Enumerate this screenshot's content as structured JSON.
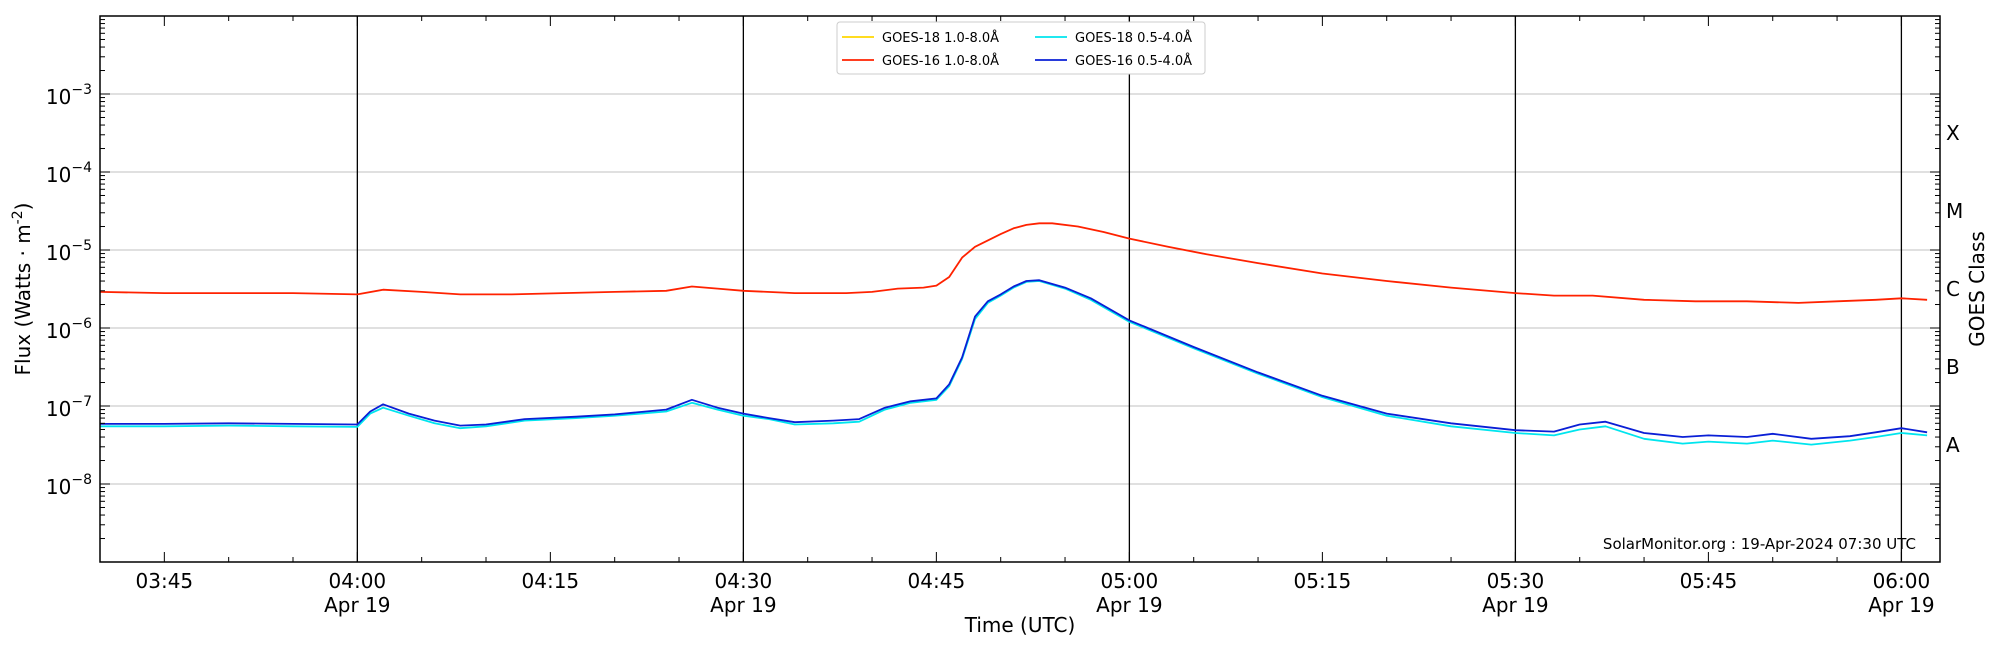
{
  "chart_data": {
    "type": "line",
    "xlabel": "Time (UTC)",
    "ylabel": "Flux (Watts · m",
    "ylabel_sup": "-2",
    "ylabel_close": ")",
    "right_label": "GOES Class",
    "credit": "SolarMonitor.org : 19-Apr-2024 07:30 UTC",
    "y_scale": "log",
    "ylim": [
      1e-09,
      0.01
    ],
    "xlim": [
      "03:40",
      "06:03"
    ],
    "grid": "horizontal",
    "legend_position": "top-center",
    "x_ticks": [
      {
        "t": "03:45",
        "line1": "03:45",
        "line2": ""
      },
      {
        "t": "04:00",
        "line1": "04:00",
        "line2": "Apr 19"
      },
      {
        "t": "04:15",
        "line1": "04:15",
        "line2": ""
      },
      {
        "t": "04:30",
        "line1": "04:30",
        "line2": "Apr 19"
      },
      {
        "t": "04:45",
        "line1": "04:45",
        "line2": ""
      },
      {
        "t": "05:00",
        "line1": "05:00",
        "line2": "Apr 19"
      },
      {
        "t": "05:15",
        "line1": "05:15",
        "line2": ""
      },
      {
        "t": "05:30",
        "line1": "05:30",
        "line2": "Apr 19"
      },
      {
        "t": "05:45",
        "line1": "05:45",
        "line2": ""
      },
      {
        "t": "06:00",
        "line1": "06:00",
        "line2": "Apr 19"
      }
    ],
    "vertical_lines": [
      "04:00",
      "04:30",
      "05:00",
      "05:30",
      "06:00"
    ],
    "y_ticks": [
      {
        "value": 1e-08,
        "base": "10",
        "exp": "−8"
      },
      {
        "value": 1e-07,
        "base": "10",
        "exp": "−7"
      },
      {
        "value": 1e-06,
        "base": "10",
        "exp": "−6"
      },
      {
        "value": 1e-05,
        "base": "10",
        "exp": "−5"
      },
      {
        "value": 0.0001,
        "base": "10",
        "exp": "−4"
      },
      {
        "value": 0.001,
        "base": "10",
        "exp": "−3"
      }
    ],
    "goes_classes": [
      {
        "label": "A",
        "value": 1e-08
      },
      {
        "label": "B",
        "value": 1e-07
      },
      {
        "label": "C",
        "value": 1e-06
      },
      {
        "label": "M",
        "value": 1e-05
      },
      {
        "label": "X",
        "value": 0.0001
      }
    ],
    "series": [
      {
        "name": "GOES-18 1.0-8.0Å",
        "color": "#ffd700",
        "points": []
      },
      {
        "name": "GOES-16 1.0-8.0Å",
        "color": "#ff2200",
        "points": [
          [
            "03:40",
            2.9e-06
          ],
          [
            "03:45",
            2.8e-06
          ],
          [
            "03:50",
            2.8e-06
          ],
          [
            "03:55",
            2.8e-06
          ],
          [
            "04:00",
            2.7e-06
          ],
          [
            "04:02",
            3.1e-06
          ],
          [
            "04:05",
            2.9e-06
          ],
          [
            "04:08",
            2.7e-06
          ],
          [
            "04:12",
            2.7e-06
          ],
          [
            "04:16",
            2.8e-06
          ],
          [
            "04:20",
            2.9e-06
          ],
          [
            "04:24",
            3e-06
          ],
          [
            "04:26",
            3.4e-06
          ],
          [
            "04:28",
            3.2e-06
          ],
          [
            "04:30",
            3e-06
          ],
          [
            "04:34",
            2.8e-06
          ],
          [
            "04:38",
            2.8e-06
          ],
          [
            "04:40",
            2.9e-06
          ],
          [
            "04:42",
            3.2e-06
          ],
          [
            "04:44",
            3.3e-06
          ],
          [
            "04:45",
            3.5e-06
          ],
          [
            "04:46",
            4.5e-06
          ],
          [
            "04:47",
            8e-06
          ],
          [
            "04:48",
            1.1e-05
          ],
          [
            "04:50",
            1.6e-05
          ],
          [
            "04:51",
            1.9e-05
          ],
          [
            "04:52",
            2.1e-05
          ],
          [
            "04:53",
            2.2e-05
          ],
          [
            "04:54",
            2.2e-05
          ],
          [
            "04:56",
            2e-05
          ],
          [
            "04:58",
            1.7e-05
          ],
          [
            "05:00",
            1.4e-05
          ],
          [
            "05:03",
            1.1e-05
          ],
          [
            "05:06",
            8.8e-06
          ],
          [
            "05:10",
            6.8e-06
          ],
          [
            "05:15",
            5e-06
          ],
          [
            "05:20",
            4e-06
          ],
          [
            "05:25",
            3.3e-06
          ],
          [
            "05:30",
            2.8e-06
          ],
          [
            "05:33",
            2.6e-06
          ],
          [
            "05:36",
            2.6e-06
          ],
          [
            "05:40",
            2.3e-06
          ],
          [
            "05:44",
            2.2e-06
          ],
          [
            "05:48",
            2.2e-06
          ],
          [
            "05:52",
            2.1e-06
          ],
          [
            "05:55",
            2.2e-06
          ],
          [
            "05:58",
            2.3e-06
          ],
          [
            "06:00",
            2.4e-06
          ],
          [
            "06:02",
            2.3e-06
          ]
        ]
      },
      {
        "name": "GOES-18 0.5-4.0Å",
        "color": "#00e5ee",
        "points": [
          [
            "03:40",
            5.5e-08
          ],
          [
            "03:45",
            5.5e-08
          ],
          [
            "03:50",
            5.6e-08
          ],
          [
            "03:55",
            5.5e-08
          ],
          [
            "04:00",
            5.4e-08
          ],
          [
            "04:01",
            8e-08
          ],
          [
            "04:02",
            9.5e-08
          ],
          [
            "04:04",
            7.5e-08
          ],
          [
            "04:06",
            6e-08
          ],
          [
            "04:08",
            5.2e-08
          ],
          [
            "04:10",
            5.5e-08
          ],
          [
            "04:13",
            6.5e-08
          ],
          [
            "04:17",
            7e-08
          ],
          [
            "04:20",
            7.5e-08
          ],
          [
            "04:24",
            8.5e-08
          ],
          [
            "04:26",
            1.1e-07
          ],
          [
            "04:28",
            9e-08
          ],
          [
            "04:30",
            7.5e-08
          ],
          [
            "04:32",
            6.8e-08
          ],
          [
            "04:34",
            5.8e-08
          ],
          [
            "04:37",
            6e-08
          ],
          [
            "04:39",
            6.3e-08
          ],
          [
            "04:41",
            9e-08
          ],
          [
            "04:43",
            1.1e-07
          ],
          [
            "04:45",
            1.2e-07
          ],
          [
            "04:46",
            1.8e-07
          ],
          [
            "04:47",
            4e-07
          ],
          [
            "04:48",
            1.3e-06
          ],
          [
            "04:49",
            2.1e-06
          ],
          [
            "04:50",
            2.6e-06
          ],
          [
            "04:51",
            3.3e-06
          ],
          [
            "04:52",
            3.9e-06
          ],
          [
            "04:53",
            4e-06
          ],
          [
            "04:55",
            3.2e-06
          ],
          [
            "04:57",
            2.3e-06
          ],
          [
            "05:00",
            1.2e-06
          ],
          [
            "05:05",
            5.5e-07
          ],
          [
            "05:10",
            2.6e-07
          ],
          [
            "05:15",
            1.3e-07
          ],
          [
            "05:20",
            7.5e-08
          ],
          [
            "05:25",
            5.5e-08
          ],
          [
            "05:30",
            4.5e-08
          ],
          [
            "05:33",
            4.2e-08
          ],
          [
            "05:35",
            5e-08
          ],
          [
            "05:37",
            5.5e-08
          ],
          [
            "05:40",
            3.8e-08
          ],
          [
            "05:43",
            3.3e-08
          ],
          [
            "05:45",
            3.5e-08
          ],
          [
            "05:48",
            3.3e-08
          ],
          [
            "05:50",
            3.6e-08
          ],
          [
            "05:53",
            3.2e-08
          ],
          [
            "05:56",
            3.6e-08
          ],
          [
            "05:58",
            4e-08
          ],
          [
            "06:00",
            4.5e-08
          ],
          [
            "06:02",
            4.2e-08
          ]
        ]
      },
      {
        "name": "GOES-16 0.5-4.0Å",
        "color": "#0a1fd6",
        "points": [
          [
            "03:40",
            5.9e-08
          ],
          [
            "03:45",
            5.9e-08
          ],
          [
            "03:50",
            6e-08
          ],
          [
            "03:55",
            5.9e-08
          ],
          [
            "04:00",
            5.8e-08
          ],
          [
            "04:01",
            8.5e-08
          ],
          [
            "04:02",
            1.05e-07
          ],
          [
            "04:04",
            8e-08
          ],
          [
            "04:06",
            6.5e-08
          ],
          [
            "04:08",
            5.6e-08
          ],
          [
            "04:10",
            5.8e-08
          ],
          [
            "04:13",
            6.8e-08
          ],
          [
            "04:17",
            7.3e-08
          ],
          [
            "04:20",
            7.8e-08
          ],
          [
            "04:24",
            9e-08
          ],
          [
            "04:26",
            1.2e-07
          ],
          [
            "04:28",
            9.5e-08
          ],
          [
            "04:30",
            8e-08
          ],
          [
            "04:32",
            7e-08
          ],
          [
            "04:34",
            6.2e-08
          ],
          [
            "04:37",
            6.5e-08
          ],
          [
            "04:39",
            6.8e-08
          ],
          [
            "04:41",
            9.5e-08
          ],
          [
            "04:43",
            1.15e-07
          ],
          [
            "04:45",
            1.25e-07
          ],
          [
            "04:46",
            1.9e-07
          ],
          [
            "04:47",
            4.2e-07
          ],
          [
            "04:48",
            1.4e-06
          ],
          [
            "04:49",
            2.2e-06
          ],
          [
            "04:50",
            2.7e-06
          ],
          [
            "04:51",
            3.4e-06
          ],
          [
            "04:52",
            4e-06
          ],
          [
            "04:53",
            4.1e-06
          ],
          [
            "04:55",
            3.3e-06
          ],
          [
            "04:57",
            2.4e-06
          ],
          [
            "05:00",
            1.25e-06
          ],
          [
            "05:05",
            5.7e-07
          ],
          [
            "05:10",
            2.7e-07
          ],
          [
            "05:15",
            1.35e-07
          ],
          [
            "05:20",
            8e-08
          ],
          [
            "05:25",
            6e-08
          ],
          [
            "05:30",
            4.9e-08
          ],
          [
            "05:33",
            4.7e-08
          ],
          [
            "05:35",
            5.8e-08
          ],
          [
            "05:37",
            6.3e-08
          ],
          [
            "05:40",
            4.5e-08
          ],
          [
            "05:43",
            4e-08
          ],
          [
            "05:45",
            4.2e-08
          ],
          [
            "05:48",
            4e-08
          ],
          [
            "05:50",
            4.4e-08
          ],
          [
            "05:53",
            3.8e-08
          ],
          [
            "05:56",
            4.1e-08
          ],
          [
            "05:58",
            4.6e-08
          ],
          [
            "06:00",
            5.2e-08
          ],
          [
            "06:02",
            4.6e-08
          ]
        ]
      }
    ]
  }
}
